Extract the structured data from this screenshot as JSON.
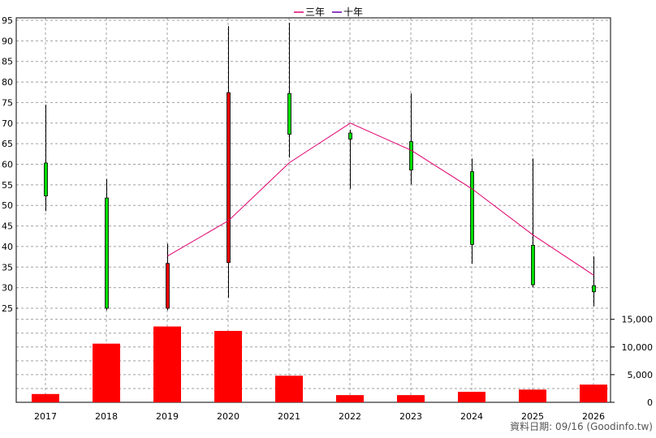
{
  "legend": [
    {
      "name": "三年",
      "color": "#e0006e"
    },
    {
      "name": "十年",
      "color": "#6a00b0"
    }
  ],
  "footer_note": "資料日期: 09/16 (Goodinfo.tw)",
  "colors": {
    "up_candle": "#ff0000",
    "down_candle": "#00dd00",
    "volume_bar": "#ff0000",
    "grid": "#a0a0a0",
    "line_3yr": "#e0006e"
  },
  "chart_data": {
    "type": "candlestick+line+bar",
    "categories": [
      "2017",
      "2018",
      "2019",
      "2020",
      "2021",
      "2022",
      "2023",
      "2024",
      "2025",
      "2026"
    ],
    "price_axis": {
      "min": 25,
      "max": 95,
      "ticks": [
        25,
        30,
        35,
        40,
        45,
        50,
        55,
        60,
        65,
        70,
        75,
        80,
        85,
        90,
        95
      ],
      "grid": true
    },
    "volume_axis": {
      "min": 0,
      "max": 17000,
      "ticks": [
        0,
        5000,
        10000,
        15000
      ],
      "tick_labels": [
        "0",
        "5,000",
        "10,000",
        "15,000"
      ],
      "grid": true
    },
    "candles": [
      {
        "year": "2017",
        "open": 60.3,
        "close": 52.3,
        "high": 74.5,
        "low": 48.6
      },
      {
        "year": "2018",
        "open": 51.8,
        "close": 25.0,
        "high": 56.4,
        "low": 24.5
      },
      {
        "year": "2019",
        "open": 25.0,
        "close": 35.9,
        "high": 40.7,
        "low": 24.5
      },
      {
        "year": "2020",
        "open": 36.1,
        "close": 77.4,
        "high": 93.6,
        "low": 27.5
      },
      {
        "year": "2021",
        "open": 77.2,
        "close": 67.3,
        "high": 94.4,
        "low": 61.6
      },
      {
        "year": "2022",
        "open": 67.6,
        "close": 66.1,
        "high": 68.4,
        "low": 54.0
      },
      {
        "year": "2023",
        "open": 65.5,
        "close": 58.6,
        "high": 77.2,
        "low": 55.1
      },
      {
        "year": "2024",
        "open": 58.2,
        "close": 40.5,
        "high": 61.4,
        "low": 35.8
      },
      {
        "year": "2025",
        "open": 40.3,
        "close": 30.7,
        "high": 61.4,
        "low": 30.1
      },
      {
        "year": "2026",
        "open": 30.5,
        "close": 29.0,
        "high": 37.6,
        "low": 25.5
      }
    ],
    "series": [
      {
        "name": "三年",
        "x": [
          "2019",
          "2020",
          "2021",
          "2022",
          "2023",
          "2024",
          "2025",
          "2026"
        ],
        "values": [
          37.7,
          46.3,
          60.4,
          70.0,
          63.4,
          54.0,
          42.8,
          33.0
        ]
      }
    ],
    "volume": [
      1500,
      10600,
      13700,
      12900,
      4800,
      1300,
      1300,
      1900,
      2300,
      3200
    ],
    "volume_display_max": 17000
  }
}
